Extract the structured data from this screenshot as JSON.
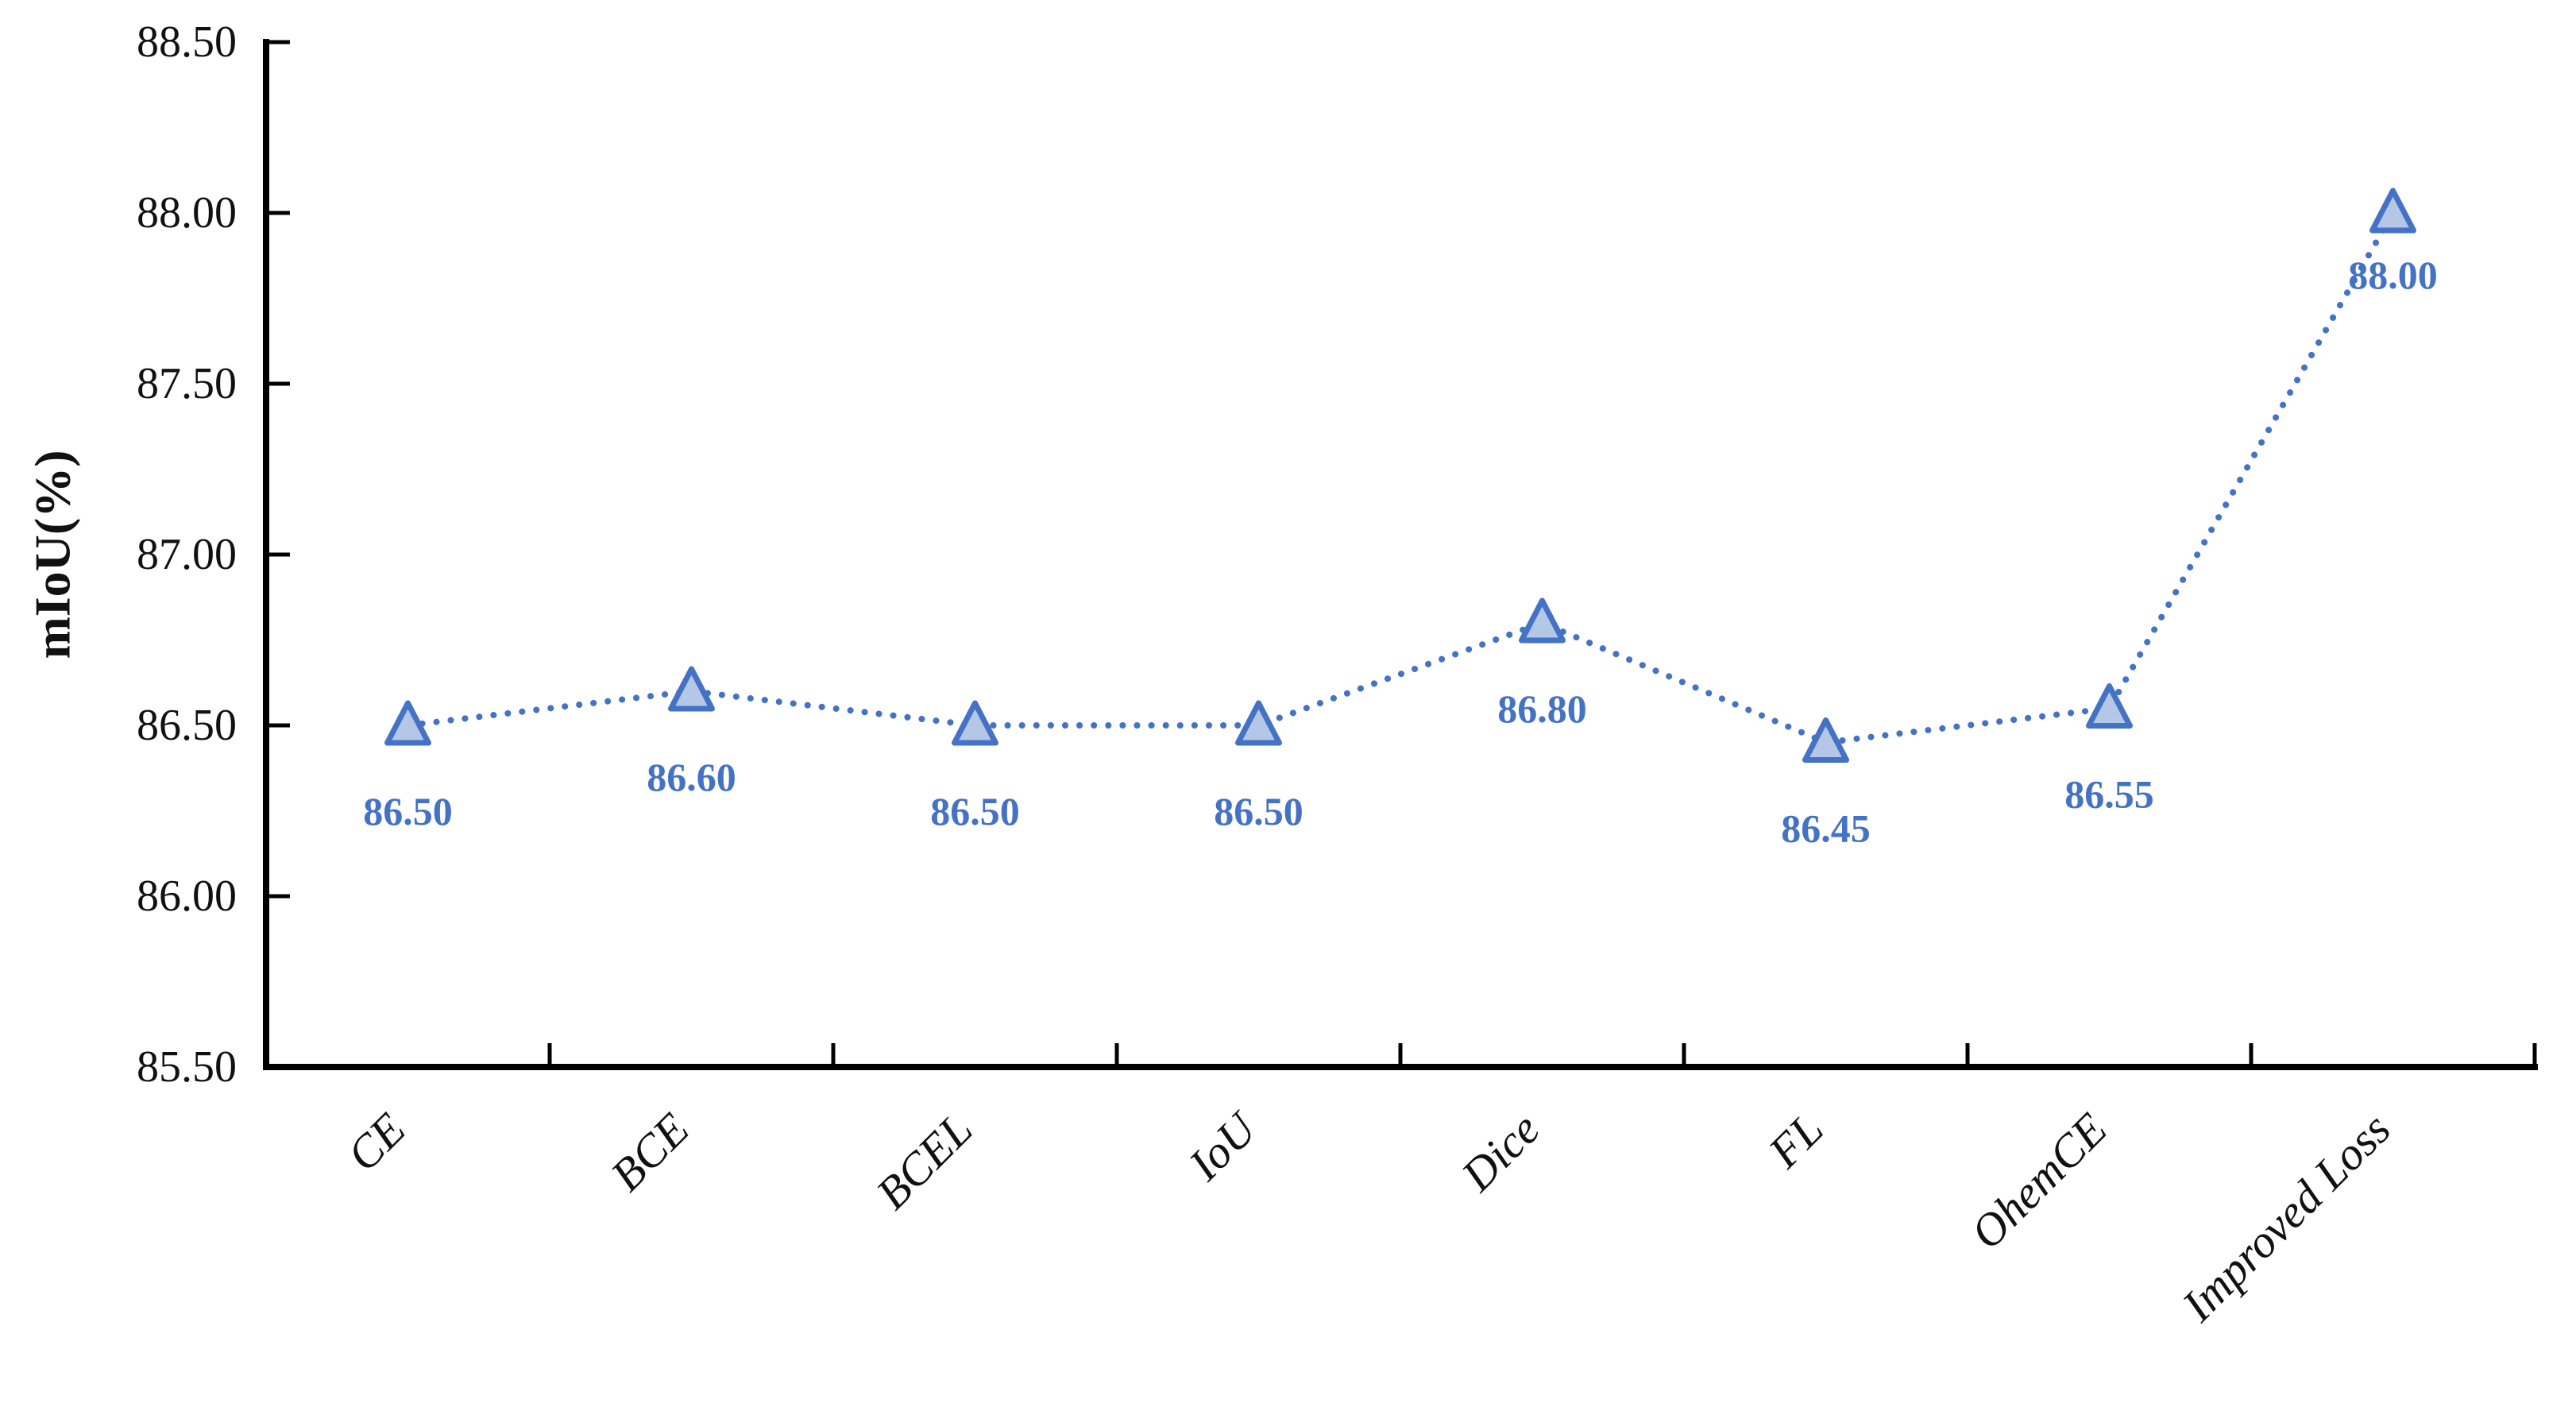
{
  "chart_data": {
    "type": "line",
    "title": "",
    "xlabel": "",
    "ylabel": "mIoU(%)",
    "categories": [
      "CE",
      "BCE",
      "BCEL",
      "IoU",
      "Dice",
      "FL",
      "OhemCE",
      "Improved Loss"
    ],
    "series": [
      {
        "name": "mIoU",
        "values": [
          86.5,
          86.6,
          86.5,
          86.5,
          86.8,
          86.45,
          86.55,
          88.0
        ]
      }
    ],
    "data_labels": [
      "86.50",
      "86.60",
      "86.50",
      "86.50",
      "86.80",
      "86.45",
      "86.55",
      "88.00"
    ],
    "ylim": [
      85.5,
      88.5
    ],
    "ytick_step": 0.5,
    "ytick_labels": [
      "85.50",
      "86.00",
      "86.50",
      "87.00",
      "87.50",
      "88.00",
      "88.50"
    ],
    "grid": false,
    "legend": "none",
    "line_style": "dotted",
    "marker": "triangle-up",
    "colors": {
      "line": "#4472C4",
      "marker_fill": "#B4C7E7",
      "marker_stroke": "#4472C4",
      "data_label": "#4472C4",
      "axis": "#000000",
      "tick_text": "#111111",
      "background": "#FFFFFF"
    }
  }
}
